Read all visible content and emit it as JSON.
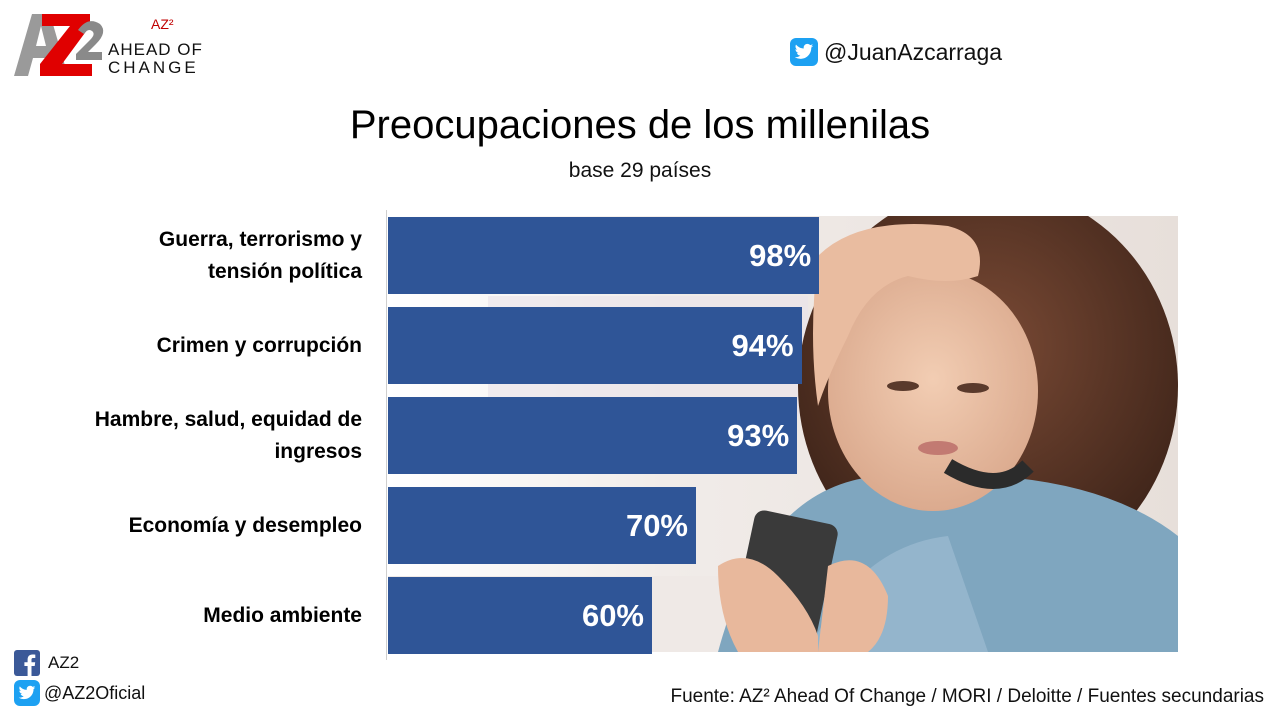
{
  "logo": {
    "sup": "AZ²",
    "line1": "AHEAD OF",
    "line2": "CHANGE"
  },
  "header": {
    "twitter_handle": "@JuanAzcarraga"
  },
  "chart_data": {
    "type": "bar",
    "orientation": "horizontal",
    "title": "Preocupaciones de los millenilas",
    "subtitle": "base 29 países",
    "categories": [
      "Guerra, terrorismo y tensión política",
      "Crimen y corrupción",
      "Hambre, salud, equidad de ingresos",
      "Economía y desempleo",
      "Medio ambiente"
    ],
    "category_lines": [
      [
        "Guerra, terrorismo y",
        "tensión política"
      ],
      [
        "Crimen y corrupción"
      ],
      [
        "Hambre, salud, equidad de",
        "ingresos"
      ],
      [
        "Economía y desempleo"
      ],
      [
        "Medio ambiente"
      ]
    ],
    "values": [
      98,
      94,
      93,
      70,
      60
    ],
    "value_labels": [
      "98%",
      "94%",
      "93%",
      "70%",
      "60%"
    ],
    "xlim": [
      0,
      100
    ],
    "bar_color": "#2f5597",
    "label_color": "#ffffff",
    "grid": false,
    "legend": "none"
  },
  "footer": {
    "facebook": "AZ2",
    "twitter": "@AZ2Oficial",
    "source": "Fuente: AZ² Ahead Of Change / MORI / Deloitte / Fuentes secundarias"
  }
}
